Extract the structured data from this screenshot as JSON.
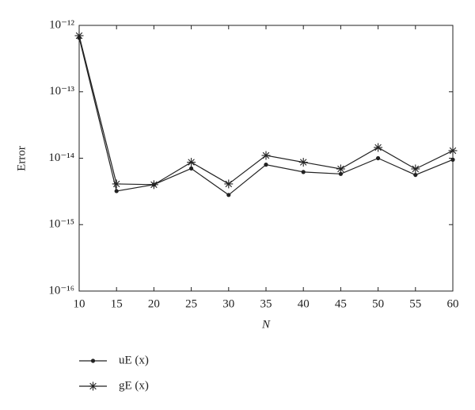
{
  "chart_data": {
    "type": "line",
    "y_scale": "log",
    "x_label": "N",
    "y_label": "Error",
    "x": [
      10,
      15,
      20,
      25,
      30,
      35,
      40,
      45,
      50,
      55,
      60
    ],
    "xlim": [
      10,
      60
    ],
    "xticks": [
      10,
      15,
      20,
      25,
      30,
      35,
      40,
      45,
      50,
      55,
      60
    ],
    "ylim": [
      1e-16,
      1e-12
    ],
    "yticks": [
      {
        "value": 1e-16,
        "label": "10⁻¹⁶"
      },
      {
        "value": 1e-15,
        "label": "10⁻¹⁵"
      },
      {
        "value": 1e-14,
        "label": "10⁻¹⁴"
      },
      {
        "value": 1e-13,
        "label": "10⁻¹³"
      },
      {
        "value": 1e-12,
        "label": "10⁻¹²"
      }
    ],
    "legend": "bottom-left",
    "series": [
      {
        "name": "uE (x)",
        "color": "#222222",
        "marker": "dot",
        "values": [
          6.5e-13,
          3.2e-15,
          4e-15,
          7e-15,
          2.8e-15,
          8e-15,
          6.2e-15,
          5.8e-15,
          1e-14,
          5.6e-15,
          9.5e-15
        ]
      },
      {
        "name": "gE (x)",
        "color": "#222222",
        "marker": "star",
        "values": [
          7e-13,
          4.1e-15,
          4e-15,
          8.7e-15,
          4.1e-15,
          1.1e-14,
          8.7e-15,
          6.9e-15,
          1.45e-14,
          6.9e-15,
          1.3e-14
        ]
      }
    ]
  }
}
